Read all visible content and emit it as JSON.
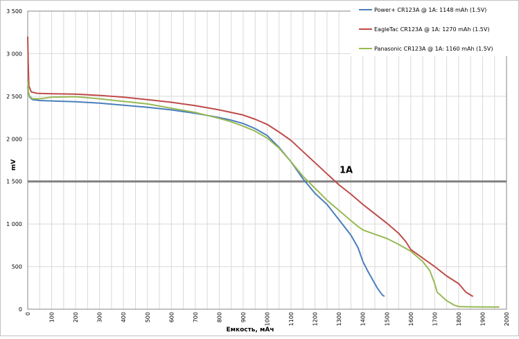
{
  "chart_data": {
    "type": "line",
    "xlabel": "Емкость, мАч",
    "ylabel": "mV",
    "xlim": [
      0,
      2000
    ],
    "ylim": [
      0,
      3500
    ],
    "x_ticks": [
      0,
      100,
      200,
      300,
      400,
      500,
      600,
      700,
      800,
      900,
      1000,
      1100,
      1200,
      1300,
      1400,
      1500,
      1600,
      1700,
      1800,
      1900,
      2000
    ],
    "y_ticks": [
      0,
      500,
      1000,
      1500,
      2000,
      2500,
      3000,
      3500
    ],
    "y_tick_labels": [
      "0",
      "500",
      "1 000",
      "1 500",
      "2 000",
      "2 500",
      "3 000",
      "3 500"
    ],
    "grid": true,
    "legend_position": "top-right",
    "reference_line": {
      "y": 1500,
      "label": "1A",
      "label_x": 1330,
      "color": "#808080"
    },
    "series": [
      {
        "name": "Power+ CR123A @ 1A: 1148 mAh (1.5V)",
        "color": "#4a7ebb",
        "points": [
          [
            0,
            2620
          ],
          [
            3,
            2540
          ],
          [
            8,
            2490
          ],
          [
            20,
            2460
          ],
          [
            50,
            2450
          ],
          [
            100,
            2445
          ],
          [
            200,
            2435
          ],
          [
            300,
            2420
          ],
          [
            400,
            2395
          ],
          [
            500,
            2370
          ],
          [
            600,
            2340
          ],
          [
            700,
            2300
          ],
          [
            800,
            2250
          ],
          [
            850,
            2220
          ],
          [
            900,
            2180
          ],
          [
            950,
            2120
          ],
          [
            1000,
            2040
          ],
          [
            1050,
            1900
          ],
          [
            1100,
            1730
          ],
          [
            1150,
            1530
          ],
          [
            1200,
            1360
          ],
          [
            1250,
            1230
          ],
          [
            1300,
            1050
          ],
          [
            1350,
            870
          ],
          [
            1380,
            720
          ],
          [
            1400,
            560
          ],
          [
            1420,
            450
          ],
          [
            1440,
            350
          ],
          [
            1460,
            250
          ],
          [
            1480,
            170
          ],
          [
            1490,
            150
          ]
        ]
      },
      {
        "name": "EagleTac CR123A @ 1A: 1270 mAh (1.5V)",
        "color": "#be4b48",
        "points": [
          [
            0,
            3200
          ],
          [
            2,
            2900
          ],
          [
            5,
            2620
          ],
          [
            15,
            2550
          ],
          [
            40,
            2535
          ],
          [
            100,
            2530
          ],
          [
            200,
            2525
          ],
          [
            300,
            2510
          ],
          [
            400,
            2490
          ],
          [
            500,
            2460
          ],
          [
            600,
            2430
          ],
          [
            700,
            2390
          ],
          [
            800,
            2340
          ],
          [
            900,
            2280
          ],
          [
            950,
            2230
          ],
          [
            1000,
            2170
          ],
          [
            1050,
            2080
          ],
          [
            1100,
            1980
          ],
          [
            1150,
            1850
          ],
          [
            1200,
            1720
          ],
          [
            1250,
            1590
          ],
          [
            1300,
            1460
          ],
          [
            1350,
            1350
          ],
          [
            1400,
            1230
          ],
          [
            1450,
            1120
          ],
          [
            1500,
            1010
          ],
          [
            1550,
            890
          ],
          [
            1580,
            790
          ],
          [
            1600,
            700
          ],
          [
            1650,
            600
          ],
          [
            1700,
            500
          ],
          [
            1750,
            390
          ],
          [
            1800,
            300
          ],
          [
            1830,
            200
          ],
          [
            1860,
            150
          ]
        ]
      },
      {
        "name": "Panasonic CR123A @ 1A: 1160 mAh (1.5V)",
        "color": "#98b954",
        "points": [
          [
            0,
            2700
          ],
          [
            3,
            2550
          ],
          [
            8,
            2500
          ],
          [
            20,
            2470
          ],
          [
            50,
            2470
          ],
          [
            100,
            2490
          ],
          [
            200,
            2495
          ],
          [
            300,
            2470
          ],
          [
            400,
            2440
          ],
          [
            500,
            2410
          ],
          [
            600,
            2360
          ],
          [
            700,
            2310
          ],
          [
            800,
            2240
          ],
          [
            850,
            2200
          ],
          [
            900,
            2150
          ],
          [
            950,
            2090
          ],
          [
            1000,
            2010
          ],
          [
            1050,
            1890
          ],
          [
            1100,
            1730
          ],
          [
            1150,
            1560
          ],
          [
            1200,
            1420
          ],
          [
            1250,
            1280
          ],
          [
            1300,
            1160
          ],
          [
            1350,
            1040
          ],
          [
            1380,
            970
          ],
          [
            1400,
            930
          ],
          [
            1450,
            880
          ],
          [
            1500,
            830
          ],
          [
            1550,
            760
          ],
          [
            1600,
            680
          ],
          [
            1650,
            560
          ],
          [
            1680,
            450
          ],
          [
            1700,
            300
          ],
          [
            1710,
            200
          ],
          [
            1750,
            100
          ],
          [
            1780,
            50
          ],
          [
            1800,
            30
          ],
          [
            1850,
            28
          ],
          [
            1900,
            27
          ],
          [
            1950,
            25
          ],
          [
            1970,
            25
          ]
        ]
      }
    ]
  }
}
